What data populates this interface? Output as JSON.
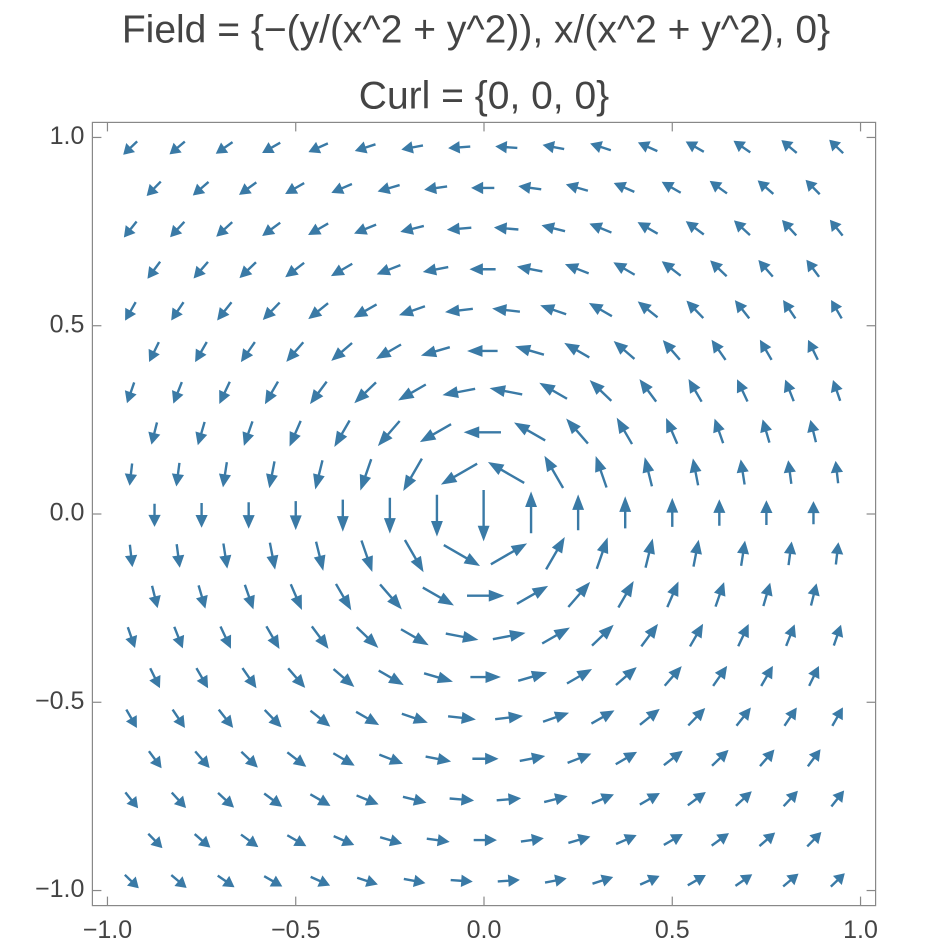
{
  "chart_data": {
    "type": "vector",
    "title": "Field = {−(y/(x^2 + y^2)), x/(x^2 + y^2), 0}",
    "subtitle": "Curl = {0, 0, 0}",
    "color": "#3a7aa6",
    "xlim": [
      -1.04,
      1.04
    ],
    "ylim": [
      -1.04,
      1.04
    ],
    "xticks": [
      {
        "value": -1,
        "label": "−1.0"
      },
      {
        "value": -0.5,
        "label": "−0.5"
      },
      {
        "value": 0,
        "label": "0.0"
      },
      {
        "value": 0.5,
        "label": "0.5"
      },
      {
        "value": 1,
        "label": "1.0"
      }
    ],
    "yticks": [
      {
        "value": -1,
        "label": "−1.0"
      },
      {
        "value": -0.5,
        "label": "−0.5"
      },
      {
        "value": 0,
        "label": "0.0"
      },
      {
        "value": 0.5,
        "label": "0.5"
      },
      {
        "value": 1,
        "label": "1.0"
      }
    ],
    "rows": [
      {
        "y": 0.974,
        "x": [
          -0.9375,
          -0.8125,
          -0.6875,
          -0.5625,
          -0.4375,
          -0.3125,
          -0.1875,
          -0.0625,
          0.0625,
          0.1875,
          0.3125,
          0.4375,
          0.5625,
          0.6875,
          0.8125,
          0.9375
        ],
        "u": [
          -0.53,
          -0.61,
          -0.69,
          -0.77,
          -0.85,
          -0.93,
          -0.99,
          -1.02,
          -1.02,
          -0.99,
          -0.93,
          -0.85,
          -0.77,
          -0.69,
          -0.61,
          -0.53
        ],
        "v": [
          -0.51,
          -0.51,
          -0.48,
          -0.44,
          -0.38,
          -0.3,
          -0.19,
          -0.07,
          0.07,
          0.19,
          0.3,
          0.38,
          0.44,
          0.48,
          0.51,
          0.51
        ]
      },
      {
        "y": 0.866,
        "x": [
          -0.875,
          -0.75,
          -0.625,
          -0.5,
          -0.375,
          -0.25,
          -0.125,
          0,
          0.125,
          0.25,
          0.375,
          0.5,
          0.625,
          0.75,
          0.875
        ],
        "u": [
          -0.57,
          -0.66,
          -0.76,
          -0.87,
          -0.97,
          -1.07,
          -1.13,
          -1.15,
          -1.13,
          -1.07,
          -0.97,
          -0.87,
          -0.76,
          -0.66,
          -0.57
        ],
        "v": [
          -0.58,
          -0.57,
          -0.55,
          -0.5,
          -0.42,
          -0.31,
          -0.16,
          0,
          0.16,
          0.31,
          0.42,
          0.5,
          0.55,
          0.57,
          0.58
        ]
      },
      {
        "y": 0.758,
        "x": [
          -0.9375,
          -0.8125,
          -0.6875,
          -0.5625,
          -0.4375,
          -0.3125,
          -0.1875,
          -0.0625,
          0.0625,
          0.1875,
          0.3125,
          0.4375,
          0.5625,
          0.6875,
          0.8125,
          0.9375
        ],
        "u": [
          -0.52,
          -0.61,
          -0.72,
          -0.85,
          -0.99,
          -1.13,
          -1.24,
          -1.31,
          -1.31,
          -1.24,
          -1.13,
          -0.99,
          -0.85,
          -0.72,
          -0.61,
          -0.52
        ],
        "v": [
          -0.65,
          -0.66,
          -0.66,
          -0.63,
          -0.57,
          -0.46,
          -0.31,
          -0.11,
          0.11,
          0.31,
          0.46,
          0.57,
          0.63,
          0.66,
          0.66,
          0.65
        ]
      },
      {
        "y": 0.65,
        "x": [
          -0.875,
          -0.75,
          -0.625,
          -0.5,
          -0.375,
          -0.25,
          -0.125,
          0,
          0.125,
          0.25,
          0.375,
          0.5,
          0.625,
          0.75,
          0.875
        ],
        "u": [
          -0.55,
          -0.66,
          -0.8,
          -0.97,
          -1.15,
          -1.34,
          -1.48,
          -1.54,
          -1.48,
          -1.34,
          -1.15,
          -0.97,
          -0.8,
          -0.66,
          -0.55
        ],
        "v": [
          -0.74,
          -0.76,
          -0.77,
          -0.74,
          -0.67,
          -0.52,
          -0.29,
          0,
          0.29,
          0.52,
          0.67,
          0.74,
          0.77,
          0.76,
          0.74
        ]
      },
      {
        "y": 0.541,
        "x": [
          -0.9375,
          -0.8125,
          -0.6875,
          -0.5625,
          -0.4375,
          -0.3125,
          -0.1875,
          -0.0625,
          0.0625,
          0.1875,
          0.3125,
          0.4375,
          0.5625,
          0.6875,
          0.8125,
          0.9375
        ],
        "u": [
          -0.46,
          -0.57,
          -0.71,
          -0.89,
          -1.12,
          -1.39,
          -1.65,
          -1.82,
          -1.82,
          -1.65,
          -1.39,
          -1.12,
          -0.89,
          -0.71,
          -0.57,
          -0.46
        ],
        "v": [
          -0.8,
          -0.85,
          -0.9,
          -0.92,
          -0.9,
          -0.8,
          -0.57,
          -0.21,
          0.21,
          0.57,
          0.8,
          0.9,
          0.92,
          0.9,
          0.85,
          0.8
        ]
      },
      {
        "y": 0.433,
        "x": [
          -0.875,
          -0.75,
          -0.625,
          -0.5,
          -0.375,
          -0.25,
          -0.125,
          0,
          0.125,
          0.25,
          0.375,
          0.5,
          0.625,
          0.75,
          0.875
        ],
        "u": [
          -0.45,
          -0.58,
          -0.75,
          -0.99,
          -1.32,
          -1.73,
          -2.13,
          -2.31,
          -2.13,
          -1.73,
          -1.32,
          -0.99,
          -0.75,
          -0.58,
          -0.45
        ],
        "v": [
          -0.92,
          -1,
          -1.08,
          -1.14,
          -1.14,
          -1,
          -0.62,
          0,
          0.62,
          1,
          1.14,
          1.14,
          1.08,
          1,
          0.92
        ]
      },
      {
        "y": 0.325,
        "x": [
          -0.9375,
          -0.8125,
          -0.6875,
          -0.5625,
          -0.4375,
          -0.3125,
          -0.1875,
          -0.0625,
          0.0625,
          0.1875,
          0.3125,
          0.4375,
          0.5625,
          0.6875,
          0.8125,
          0.9375
        ],
        "u": [
          -0.33,
          -0.42,
          -0.56,
          -0.77,
          -1.09,
          -1.6,
          -2.31,
          -2.97,
          -2.97,
          -2.31,
          -1.6,
          -1.09,
          -0.77,
          -0.56,
          -0.42,
          -0.33
        ],
        "v": [
          -0.95,
          -1.06,
          -1.19,
          -1.33,
          -1.47,
          -1.54,
          -1.33,
          -0.57,
          0.57,
          1.33,
          1.54,
          1.47,
          1.33,
          1.19,
          1.06,
          0.95
        ]
      },
      {
        "y": 0.217,
        "x": [
          -0.875,
          -0.75,
          -0.625,
          -0.5,
          -0.375,
          -0.25,
          -0.125,
          0,
          0.125,
          0.25,
          0.375,
          0.5,
          0.625,
          0.75,
          0.875
        ],
        "u": [
          -0.27,
          -0.36,
          -0.5,
          -0.73,
          -1.16,
          -1.98,
          -3.46,
          -4.61,
          -3.46,
          -1.98,
          -1.16,
          -0.73,
          -0.5,
          -0.36,
          -0.27
        ],
        "v": [
          -1.08,
          -1.23,
          -1.43,
          -1.68,
          -2,
          -2.28,
          -1.99,
          0,
          1.99,
          2.28,
          2,
          1.68,
          1.43,
          1.23,
          1.08
        ]
      },
      {
        "y": 0.108,
        "x": [
          -0.9375,
          -0.8125,
          -0.6875,
          -0.5625,
          -0.4375,
          -0.3125,
          -0.1875,
          -0.0625,
          0.0625,
          0.1875,
          0.3125,
          0.4375,
          0.5625,
          0.6875,
          0.8125,
          0.9375
        ],
        "u": [
          -0.12,
          -0.16,
          -0.22,
          -0.33,
          -0.53,
          -0.99,
          -2.31,
          -6.94,
          -6.94,
          -2.31,
          -0.99,
          -0.53,
          -0.33,
          -0.22,
          -0.16,
          -0.12
        ],
        "v": [
          -1.05,
          -1.21,
          -1.42,
          -1.71,
          -2.15,
          -2.86,
          -4,
          -4.01,
          4.01,
          4,
          2.86,
          2.15,
          1.71,
          1.42,
          1.21,
          1.05
        ]
      },
      {
        "y": 0,
        "x": [
          -0.875,
          -0.75,
          -0.625,
          -0.5,
          -0.375,
          -0.25,
          -0.125,
          -0.001,
          0.125,
          0.25,
          0.375,
          0.5,
          0.625,
          0.75,
          0.875
        ],
        "u": [
          0,
          0,
          0,
          0,
          0,
          0,
          0,
          0,
          0,
          0,
          0,
          0,
          0,
          0,
          0
        ],
        "v": [
          -1.14,
          -1.33,
          -1.6,
          -2,
          -2.67,
          -4,
          -8,
          -1000,
          8,
          4,
          2.67,
          2,
          1.6,
          1.33,
          1.14
        ]
      },
      {
        "y": -0.108,
        "x": [
          -0.9375,
          -0.8125,
          -0.6875,
          -0.5625,
          -0.4375,
          -0.3125,
          -0.1875,
          -0.0625,
          0.0625,
          0.1875,
          0.3125,
          0.4375,
          0.5625,
          0.6875,
          0.8125,
          0.9375
        ],
        "u": [
          0.12,
          0.16,
          0.22,
          0.33,
          0.53,
          0.99,
          2.31,
          6.94,
          6.94,
          2.31,
          0.99,
          0.53,
          0.33,
          0.22,
          0.16,
          0.12
        ],
        "v": [
          -1.05,
          -1.21,
          -1.42,
          -1.71,
          -2.15,
          -2.86,
          -4,
          -4.01,
          4.01,
          4,
          2.86,
          2.15,
          1.71,
          1.42,
          1.21,
          1.05
        ]
      },
      {
        "y": -0.217,
        "x": [
          -0.875,
          -0.75,
          -0.625,
          -0.5,
          -0.375,
          -0.25,
          -0.125,
          0,
          0.125,
          0.25,
          0.375,
          0.5,
          0.625,
          0.75,
          0.875
        ],
        "u": [
          0.27,
          0.36,
          0.5,
          0.73,
          1.16,
          1.98,
          3.46,
          4.61,
          3.46,
          1.98,
          1.16,
          0.73,
          0.5,
          0.36,
          0.27
        ],
        "v": [
          -1.08,
          -1.23,
          -1.43,
          -1.68,
          -2,
          -2.28,
          -1.99,
          0,
          1.99,
          2.28,
          2,
          1.68,
          1.43,
          1.23,
          1.08
        ]
      },
      {
        "y": -0.325,
        "x": [
          -0.9375,
          -0.8125,
          -0.6875,
          -0.5625,
          -0.4375,
          -0.3125,
          -0.1875,
          -0.0625,
          0.0625,
          0.1875,
          0.3125,
          0.4375,
          0.5625,
          0.6875,
          0.8125,
          0.9375
        ],
        "u": [
          0.33,
          0.42,
          0.56,
          0.77,
          1.09,
          1.6,
          2.31,
          2.97,
          2.97,
          2.31,
          1.6,
          1.09,
          0.77,
          0.56,
          0.42,
          0.33
        ],
        "v": [
          -0.95,
          -1.06,
          -1.19,
          -1.33,
          -1.47,
          -1.54,
          -1.33,
          -0.57,
          0.57,
          1.33,
          1.54,
          1.47,
          1.33,
          1.19,
          1.06,
          0.95
        ]
      },
      {
        "y": -0.433,
        "x": [
          -0.875,
          -0.75,
          -0.625,
          -0.5,
          -0.375,
          -0.25,
          -0.125,
          0,
          0.125,
          0.25,
          0.375,
          0.5,
          0.625,
          0.75,
          0.875
        ],
        "u": [
          0.45,
          0.58,
          0.75,
          0.99,
          1.32,
          1.73,
          2.13,
          2.31,
          2.13,
          1.73,
          1.32,
          0.99,
          0.75,
          0.58,
          0.45
        ],
        "v": [
          -0.92,
          -1,
          -1.08,
          -1.14,
          -1.14,
          -1,
          -0.62,
          0,
          0.62,
          1,
          1.14,
          1.14,
          1.08,
          1,
          0.92
        ]
      },
      {
        "y": -0.541,
        "x": [
          -0.9375,
          -0.8125,
          -0.6875,
          -0.5625,
          -0.4375,
          -0.3125,
          -0.1875,
          -0.0625,
          0.0625,
          0.1875,
          0.3125,
          0.4375,
          0.5625,
          0.6875,
          0.8125,
          0.9375
        ],
        "u": [
          0.46,
          0.57,
          0.71,
          0.89,
          1.12,
          1.39,
          1.65,
          1.82,
          1.82,
          1.65,
          1.39,
          1.12,
          0.89,
          0.71,
          0.57,
          0.46
        ],
        "v": [
          -0.8,
          -0.85,
          -0.9,
          -0.92,
          -0.9,
          -0.8,
          -0.57,
          -0.21,
          0.21,
          0.57,
          0.8,
          0.9,
          0.92,
          0.9,
          0.85,
          0.8
        ]
      },
      {
        "y": -0.65,
        "x": [
          -0.875,
          -0.75,
          -0.625,
          -0.5,
          -0.375,
          -0.25,
          -0.125,
          0,
          0.125,
          0.25,
          0.375,
          0.5,
          0.625,
          0.75,
          0.875
        ],
        "u": [
          0.55,
          0.66,
          0.8,
          0.97,
          1.15,
          1.34,
          1.48,
          1.54,
          1.48,
          1.34,
          1.15,
          0.97,
          0.8,
          0.66,
          0.55
        ],
        "v": [
          -0.74,
          -0.76,
          -0.77,
          -0.74,
          -0.67,
          -0.52,
          -0.29,
          0,
          0.29,
          0.52,
          0.67,
          0.74,
          0.77,
          0.76,
          0.74
        ]
      },
      {
        "y": -0.758,
        "x": [
          -0.9375,
          -0.8125,
          -0.6875,
          -0.5625,
          -0.4375,
          -0.3125,
          -0.1875,
          -0.0625,
          0.0625,
          0.1875,
          0.3125,
          0.4375,
          0.5625,
          0.6875,
          0.8125,
          0.9375
        ],
        "u": [
          0.52,
          0.61,
          0.72,
          0.85,
          0.99,
          1.13,
          1.24,
          1.31,
          1.31,
          1.24,
          1.13,
          0.99,
          0.85,
          0.72,
          0.61,
          0.52
        ],
        "v": [
          -0.65,
          -0.66,
          -0.66,
          -0.63,
          -0.57,
          -0.46,
          -0.31,
          -0.11,
          0.11,
          0.31,
          0.46,
          0.57,
          0.63,
          0.66,
          0.66,
          0.65
        ]
      },
      {
        "y": -0.866,
        "x": [
          -0.875,
          -0.75,
          -0.625,
          -0.5,
          -0.375,
          -0.25,
          -0.125,
          0,
          0.125,
          0.25,
          0.375,
          0.5,
          0.625,
          0.75,
          0.875
        ],
        "u": [
          0.57,
          0.66,
          0.76,
          0.87,
          0.97,
          1.07,
          1.13,
          1.15,
          1.13,
          1.07,
          0.97,
          0.87,
          0.76,
          0.66,
          0.57
        ],
        "v": [
          -0.58,
          -0.57,
          -0.55,
          -0.5,
          -0.42,
          -0.31,
          -0.16,
          0,
          0.16,
          0.31,
          0.42,
          0.5,
          0.55,
          0.57,
          0.58
        ]
      },
      {
        "y": -0.974,
        "x": [
          -0.9375,
          -0.8125,
          -0.6875,
          -0.5625,
          -0.4375,
          -0.3125,
          -0.1875,
          -0.0625,
          0.0625,
          0.1875,
          0.3125,
          0.4375,
          0.5625,
          0.6875,
          0.8125,
          0.9375
        ],
        "u": [
          0.53,
          0.61,
          0.69,
          0.77,
          0.85,
          0.93,
          0.99,
          1.02,
          1.02,
          0.99,
          0.93,
          0.85,
          0.77,
          0.69,
          0.61,
          0.53
        ],
        "v": [
          -0.51,
          -0.51,
          -0.48,
          -0.44,
          -0.38,
          -0.3,
          -0.19,
          -0.07,
          0.07,
          0.19,
          0.3,
          0.38,
          0.44,
          0.48,
          0.51,
          0.51
        ]
      }
    ]
  }
}
